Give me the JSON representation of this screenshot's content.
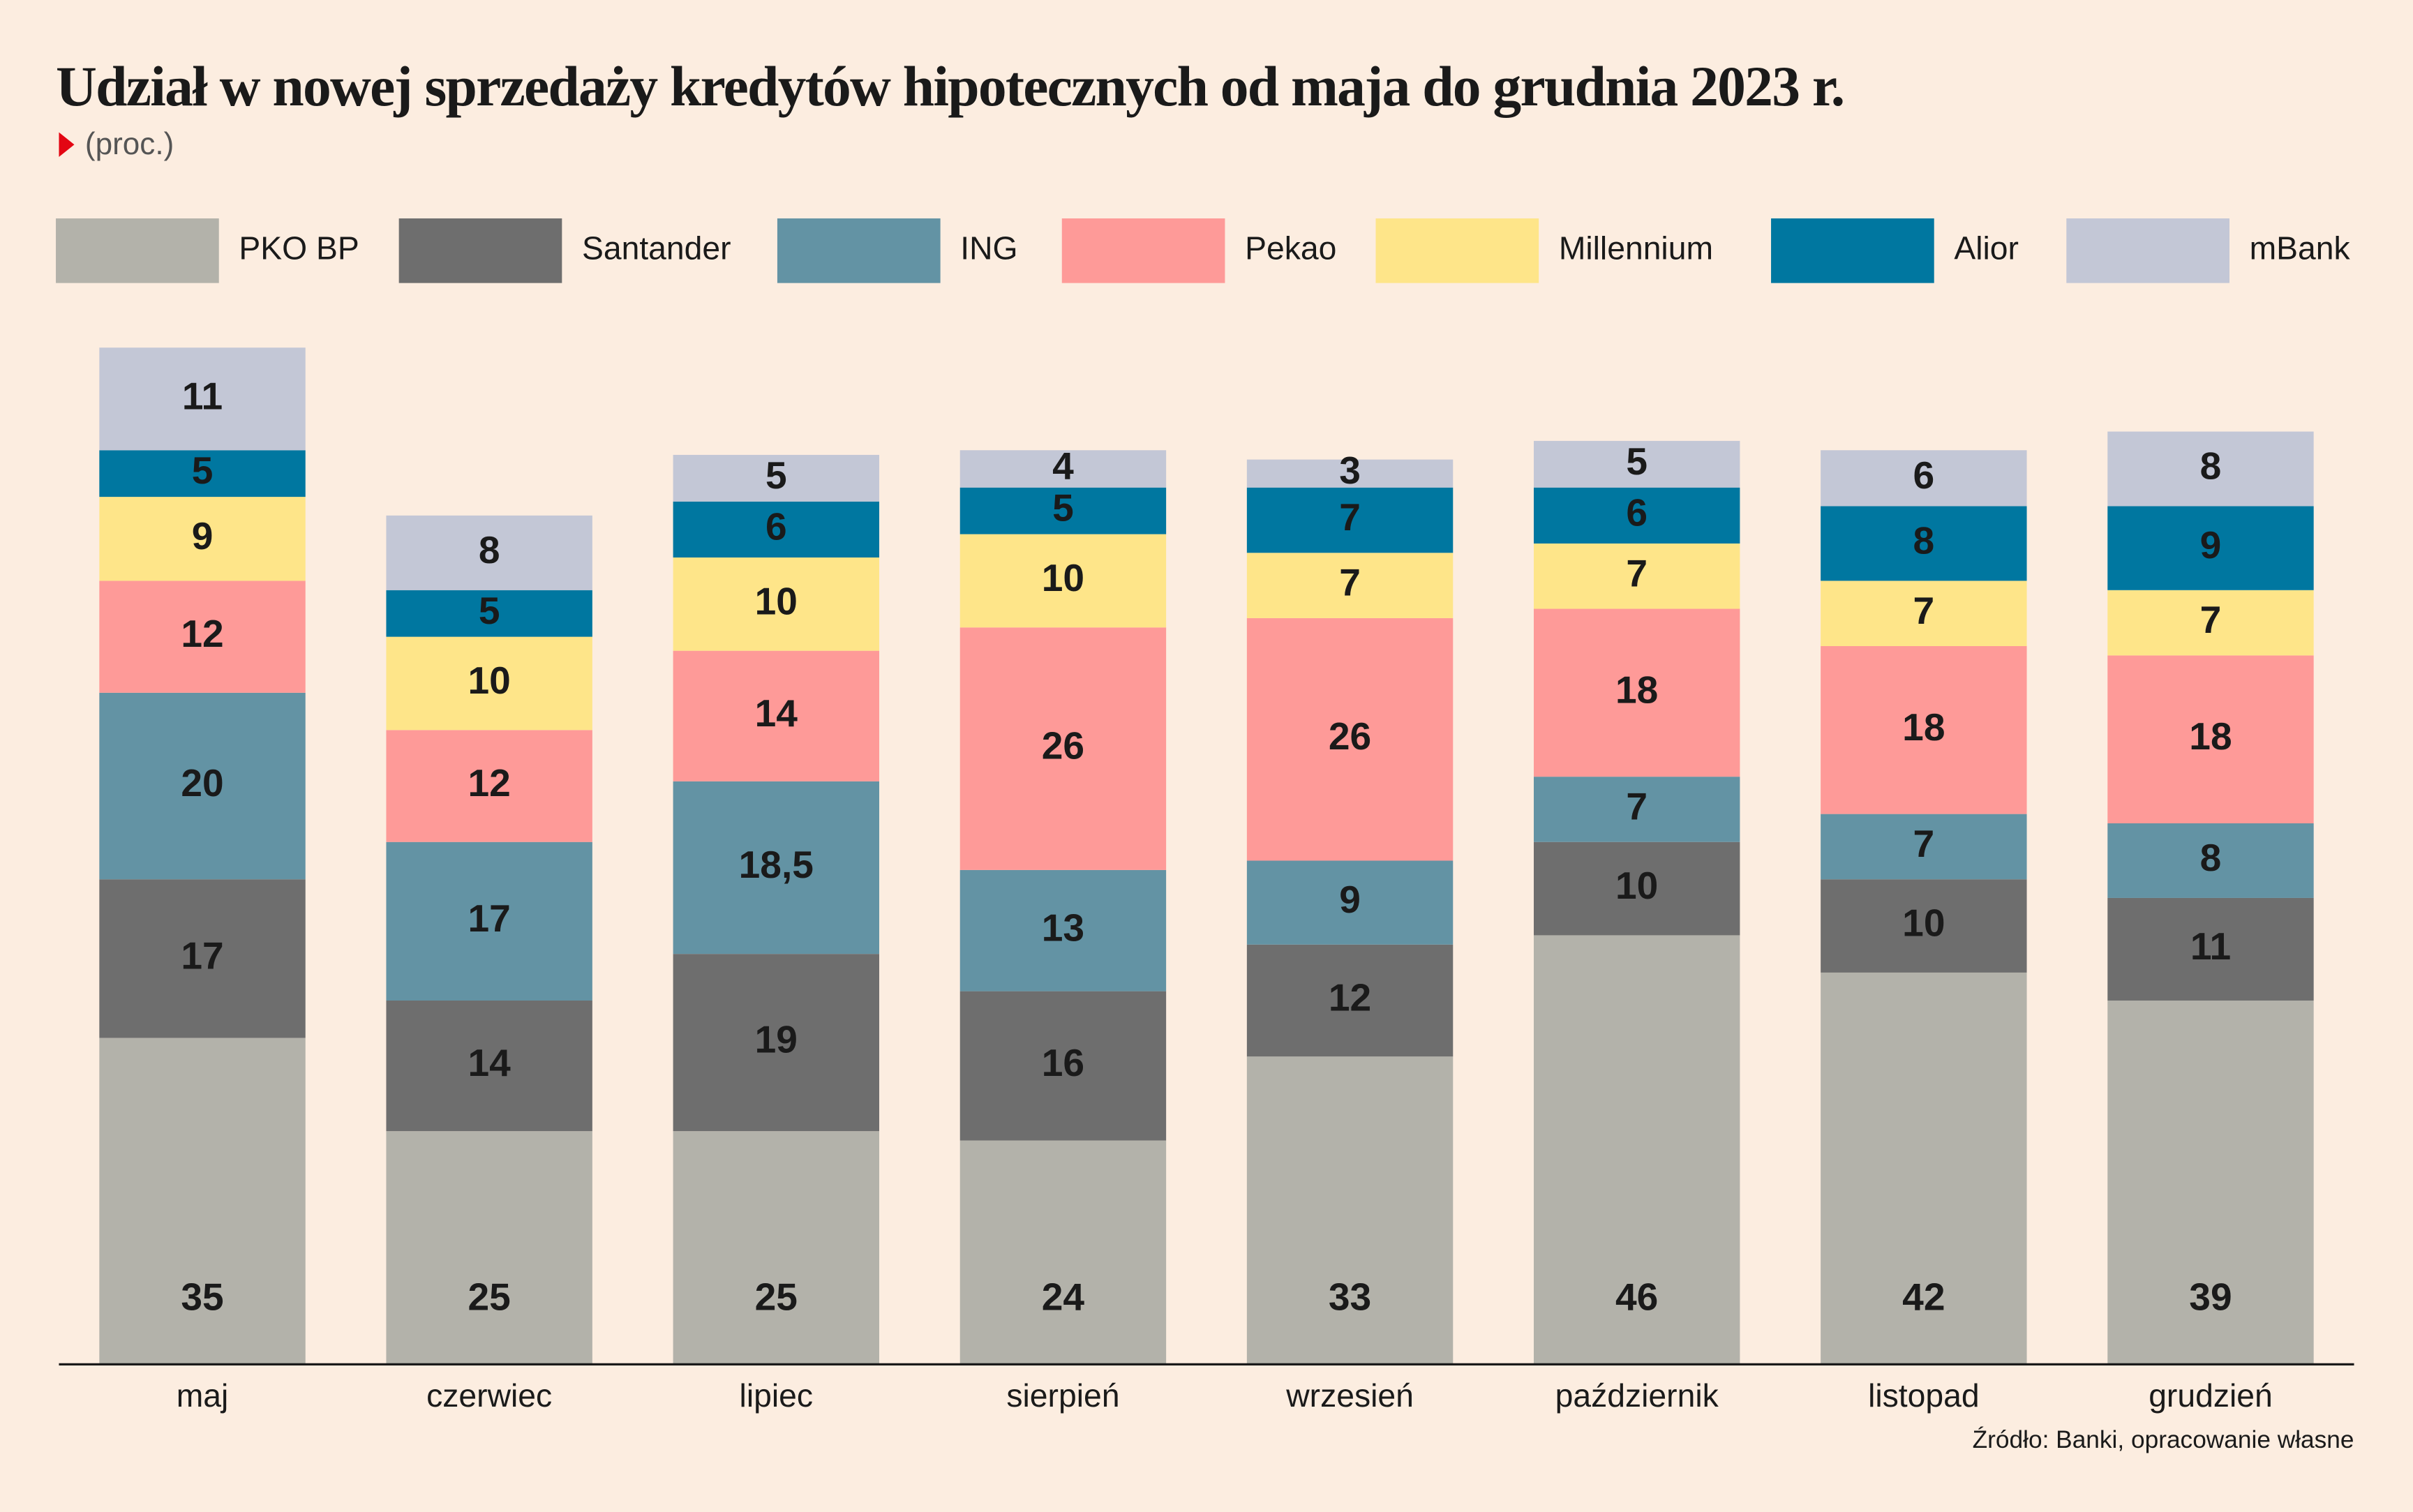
{
  "chart_data": {
    "type": "stacked_bar",
    "title": "Udział w nowej sprzedaży kredytów hipotecznych od maja do grudnia 2023 r.",
    "subtitle": "(proc.)",
    "source": "Źródło: Banki, opracowanie własne",
    "categories": [
      "maj",
      "czerwiec",
      "lipiec",
      "sierpień",
      "wrzesień",
      "październik",
      "listopad",
      "grudzień"
    ],
    "series": [
      {
        "name": "PKO BP",
        "color": "#b3b2aa",
        "values": [
          35,
          25,
          25,
          24,
          33,
          46,
          42,
          39
        ]
      },
      {
        "name": "Santander",
        "color": "#6e6e6e",
        "values": [
          17,
          14,
          19,
          16,
          12,
          10,
          10,
          11
        ]
      },
      {
        "name": "ING",
        "color": "#6393a4",
        "values": [
          20,
          17,
          18.5,
          13,
          9,
          7,
          7,
          8
        ],
        "value_labels": [
          "20",
          "17",
          "18,5",
          "13",
          "9",
          "7",
          "7",
          "8"
        ]
      },
      {
        "name": "Pekao",
        "color": "#fe9a98",
        "values": [
          12,
          12,
          14,
          26,
          26,
          18,
          18,
          18
        ]
      },
      {
        "name": "Millennium",
        "color": "#fee589",
        "values": [
          9,
          10,
          10,
          10,
          7,
          7,
          7,
          7
        ]
      },
      {
        "name": "Alior",
        "color": "#0077a0",
        "values": [
          5,
          5,
          6,
          5,
          7,
          6,
          8,
          9
        ]
      },
      {
        "name": "mBank",
        "color": "#c3c7d6",
        "values": [
          11,
          8,
          5,
          4,
          3,
          5,
          6,
          8
        ]
      }
    ]
  }
}
